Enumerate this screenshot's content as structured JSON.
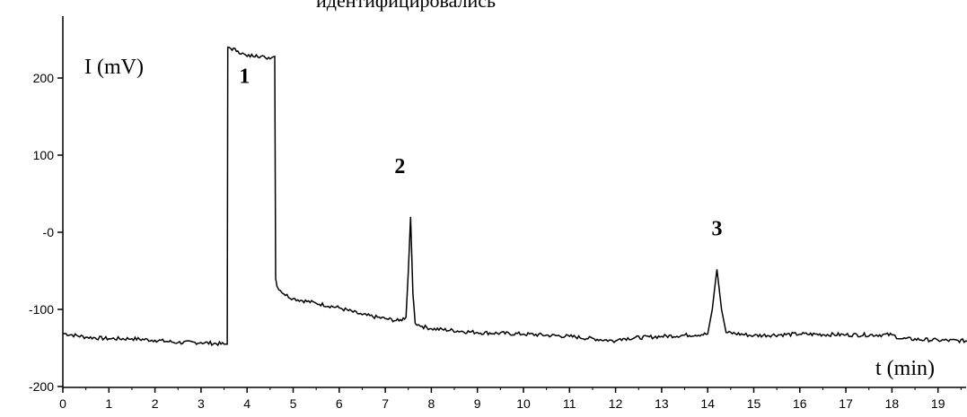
{
  "caption": "идентифицировались",
  "chart_data": {
    "type": "line",
    "ylabel": "I (mV)",
    "xlabel": "t (min)",
    "xlim": [
      0,
      19.7
    ],
    "ylim": [
      -200,
      250
    ],
    "x_ticks": [
      0,
      1,
      2,
      3,
      4,
      5,
      6,
      7,
      8,
      9,
      10,
      11,
      12,
      13,
      14,
      15,
      16,
      17,
      18,
      19
    ],
    "y_ticks": [
      {
        "value": 200,
        "label": "200"
      },
      {
        "value": 100,
        "label": "100"
      },
      {
        "value": 0,
        "label": "-0"
      },
      {
        "value": -100,
        "label": "-100"
      },
      {
        "value": -200,
        "label": "-200"
      }
    ],
    "grid": false,
    "peaks": [
      {
        "label": "1",
        "x": 4.1,
        "y": 240
      },
      {
        "label": "2",
        "x": 7.55,
        "y": 30
      },
      {
        "label": "3",
        "x": 14.2,
        "y": -48
      }
    ],
    "series": [
      {
        "x": [
          0,
          0.5,
          1.0,
          1.5,
          2.0,
          2.5,
          3.0,
          3.5,
          3.57,
          3.58,
          3.8,
          4.0,
          4.2,
          4.4,
          4.6,
          4.62,
          4.65,
          4.8,
          5.0,
          5.5,
          6.0,
          6.5,
          7.0,
          7.3,
          7.45,
          7.5,
          7.55,
          7.6,
          7.65,
          7.8,
          8.0,
          9.0,
          10.0,
          11.0,
          12.0,
          12.1,
          13.0,
          14.0,
          14.1,
          14.2,
          14.3,
          14.4,
          15.0,
          16.0,
          17.0,
          18.0,
          18.2,
          19.0,
          19.7
        ],
        "y": [
          -131,
          -136,
          -138,
          -138,
          -140,
          -143,
          -143,
          -145,
          -145,
          240,
          235,
          228,
          230,
          226,
          228,
          -60,
          -70,
          -80,
          -86,
          -92,
          -98,
          -107,
          -112,
          -115,
          -110,
          -50,
          20,
          -80,
          -118,
          -122,
          -125,
          -130,
          -132,
          -135,
          -141,
          -138,
          -135,
          -132,
          -100,
          -48,
          -100,
          -130,
          -134,
          -132,
          -133,
          -133,
          -138,
          -140,
          -141
        ]
      }
    ]
  }
}
